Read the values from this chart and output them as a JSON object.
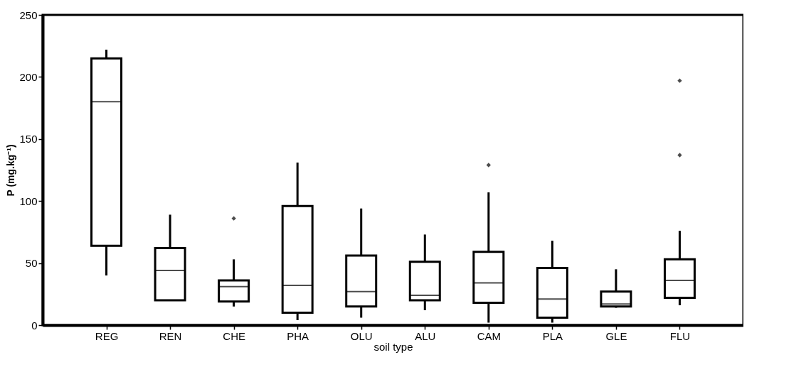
{
  "chart_data": {
    "type": "box",
    "xlabel": "soil type",
    "ylabel": "P (mg.kg⁻¹)",
    "categories": [
      "REG",
      "REN",
      "CHE",
      "PHA",
      "OLU",
      "ALU",
      "CAM",
      "PLA",
      "GLE",
      "FLU"
    ],
    "boxes": [
      {
        "low": 40,
        "q1": 64,
        "median": 180,
        "q3": 215,
        "high": 222
      },
      {
        "low": 20,
        "q1": 20,
        "median": 44,
        "q3": 62,
        "high": 89
      },
      {
        "low": 15,
        "q1": 19,
        "median": 31,
        "q3": 36,
        "high": 53,
        "outliers": [
          86
        ]
      },
      {
        "low": 4,
        "q1": 10,
        "median": 32,
        "q3": 96,
        "high": 131
      },
      {
        "low": 6,
        "q1": 15,
        "median": 27,
        "q3": 56,
        "high": 94
      },
      {
        "low": 12,
        "q1": 20,
        "median": 24,
        "q3": 51,
        "high": 73
      },
      {
        "low": 2,
        "q1": 18,
        "median": 34,
        "q3": 59,
        "high": 107,
        "outliers": [
          129
        ]
      },
      {
        "low": 2,
        "q1": 6,
        "median": 21,
        "q3": 46,
        "high": 68
      },
      {
        "low": 14,
        "q1": 15,
        "median": 17,
        "q3": 27,
        "high": 45
      },
      {
        "low": 16,
        "q1": 22,
        "median": 36,
        "q3": 53,
        "high": 76,
        "outliers": [
          137,
          197
        ]
      }
    ],
    "color": "#000000",
    "ylim": [
      0,
      250
    ],
    "yticks": [
      0,
      50,
      100,
      150,
      200,
      250
    ],
    "grid": false
  }
}
